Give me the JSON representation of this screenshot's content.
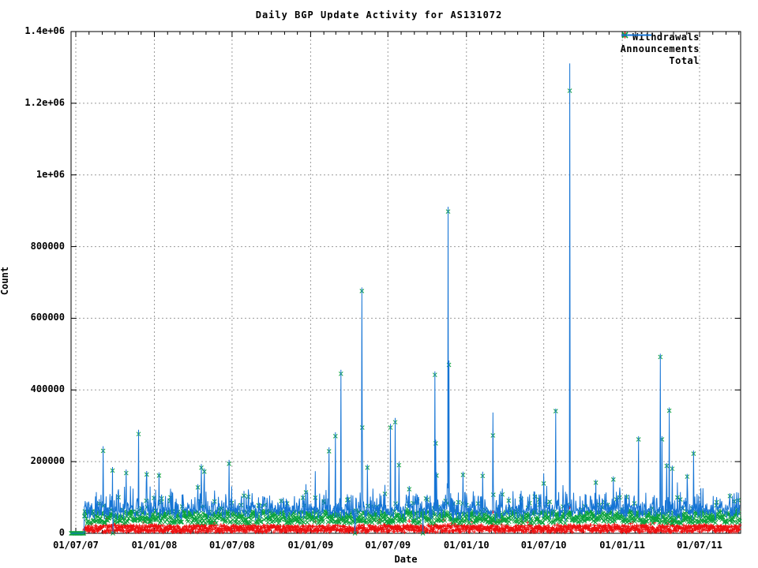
{
  "title": "Daily BGP Update Activity for AS131072",
  "axes": {
    "x_label": "Date",
    "y_label": "Count",
    "x_ticks": [
      {
        "label": "01/07/07",
        "date": "2007-07-01"
      },
      {
        "label": "01/01/08",
        "date": "2008-01-01"
      },
      {
        "label": "01/07/08",
        "date": "2008-07-01"
      },
      {
        "label": "01/01/09",
        "date": "2009-01-01"
      },
      {
        "label": "01/07/09",
        "date": "2009-07-01"
      },
      {
        "label": "01/01/10",
        "date": "2010-01-01"
      },
      {
        "label": "01/07/10",
        "date": "2010-07-01"
      },
      {
        "label": "01/01/11",
        "date": "2011-01-01"
      },
      {
        "label": "01/07/11",
        "date": "2011-07-01"
      }
    ],
    "y_ticks": [
      {
        "label": "0",
        "value": 0
      },
      {
        "label": "200000",
        "value": 200000
      },
      {
        "label": "400000",
        "value": 400000
      },
      {
        "label": "600000",
        "value": 600000
      },
      {
        "label": "800000",
        "value": 800000
      },
      {
        "label": "1e+06",
        "value": 1000000
      },
      {
        "label": "1.2e+06",
        "value": 1200000
      },
      {
        "label": "1.4e+06",
        "value": 1400000
      }
    ],
    "minor_x_ticks": "monthly",
    "grid": "dashed-at-major-ticks"
  },
  "legend": {
    "position": "top-right-inside",
    "items": [
      {
        "label": "Withdrawals",
        "marker": "plus",
        "color": "#ee1111"
      },
      {
        "label": "Announcements",
        "marker": "cross",
        "color": "#0ba23e"
      },
      {
        "label": "Total",
        "marker": "line",
        "color": "#1574d5"
      }
    ]
  },
  "colors": {
    "background": "#ffffff",
    "border": "#000000",
    "grid": "#9b9b9b",
    "withdrawals": "#ee1111",
    "announcements": "#0ba23e",
    "total": "#1574d5"
  },
  "chart_data": {
    "type": "line",
    "title": "Daily BGP Update Activity for AS131072",
    "xlabel": "Date",
    "ylabel": "Count",
    "resolution": "daily",
    "x_range": [
      "2007-06-20",
      "2011-10-03"
    ],
    "ylim": [
      0,
      1400000
    ],
    "random_seed": 20110815,
    "series": [
      {
        "name": "Withdrawals",
        "style": "points-plus",
        "color": "#ee1111",
        "baseline": {
          "min": 3000,
          "max": 23000,
          "rare_max": 45000
        }
      },
      {
        "name": "Announcements",
        "style": "points-cross",
        "color": "#0ba23e",
        "baseline": {
          "min": 28000,
          "max": 62000,
          "tail_max": 110000,
          "rare_max": 160000
        }
      },
      {
        "name": "Total",
        "style": "line",
        "color": "#1574d5",
        "baseline": "withdrawals + announcements + noise"
      }
    ],
    "zero_period": {
      "start": "2007-06-20",
      "end": "2007-07-20"
    },
    "zero_days": [
      "2007-09-26",
      "2009-04-15",
      "2009-09-21"
    ],
    "spikes": [
      {
        "date": "2007-09-03",
        "announcements": 230000,
        "total": 243000
      },
      {
        "date": "2007-09-25",
        "announcements": 175000,
        "total": 185000
      },
      {
        "date": "2007-10-27",
        "announcements": 168000,
        "total": 178000
      },
      {
        "date": "2007-11-25",
        "announcements": 277000,
        "total": 289000
      },
      {
        "date": "2007-12-14",
        "announcements": 164000,
        "total": 174000
      },
      {
        "date": "2008-01-12",
        "announcements": 161000,
        "total": 170000
      },
      {
        "date": "2008-02-07",
        "announcements": 90000,
        "total": 99000
      },
      {
        "date": "2008-04-12",
        "announcements": 128000,
        "total": 137000
      },
      {
        "date": "2008-04-20",
        "announcements": 183000,
        "total": 193000
      },
      {
        "date": "2008-04-27",
        "announcements": 172000,
        "total": 181000
      },
      {
        "date": "2008-06-24",
        "announcements": 194000,
        "total": 205000
      },
      {
        "date": "2008-12-14",
        "announcements": 99000,
        "total": 108000
      },
      {
        "date": "2009-02-13",
        "announcements": 229000,
        "total": 240000
      },
      {
        "date": "2009-02-28",
        "announcements": 271000,
        "total": 282000
      },
      {
        "date": "2009-03-13",
        "announcements": 445000,
        "total": 456000
      },
      {
        "date": "2009-05-01",
        "announcements": 676000,
        "total": 686000
      },
      {
        "date": "2009-05-02",
        "announcements": 295000,
        "total": 305000
      },
      {
        "date": "2009-05-14",
        "announcements": 183000,
        "total": 192000
      },
      {
        "date": "2009-07-07",
        "announcements": 295000,
        "total": 305000
      },
      {
        "date": "2009-07-18",
        "announcements": 310000,
        "total": 322000
      },
      {
        "date": "2009-07-27",
        "announcements": 190000,
        "total": 199000
      },
      {
        "date": "2009-08-20",
        "announcements": 123000,
        "total": 132000
      },
      {
        "date": "2009-10-19",
        "announcements": 442000,
        "total": 452000
      },
      {
        "date": "2009-10-21",
        "announcements": 251000,
        "total": 261000
      },
      {
        "date": "2009-10-23",
        "announcements": 161000,
        "total": 170000
      },
      {
        "date": "2009-11-19",
        "announcements": 898000,
        "total": 911000
      },
      {
        "date": "2009-11-21",
        "announcements": 470000,
        "total": 482000
      },
      {
        "date": "2009-12-24",
        "announcements": 163000,
        "total": 172000
      },
      {
        "date": "2010-02-08",
        "announcements": 160000,
        "total": 172000
      },
      {
        "date": "2010-03-04",
        "announcements": 273000,
        "total": 337000,
        "withdrawals": 59000
      },
      {
        "date": "2010-07-01",
        "announcements": 139000,
        "total": 167000
      },
      {
        "date": "2010-07-29",
        "announcements": 341000,
        "total": 348000
      },
      {
        "date": "2010-08-31",
        "announcements": 1235000,
        "total": 1311000,
        "withdrawals": 72000
      },
      {
        "date": "2010-10-31",
        "announcements": 141000,
        "total": 150000
      },
      {
        "date": "2010-12-11",
        "announcements": 150000,
        "total": 159000
      },
      {
        "date": "2011-02-08",
        "announcements": 262000,
        "total": 271000
      },
      {
        "date": "2011-03-31",
        "announcements": 492000,
        "total": 501000
      },
      {
        "date": "2011-04-04",
        "announcements": 262000,
        "total": 271000
      },
      {
        "date": "2011-04-15",
        "announcements": 188000,
        "total": 196000
      },
      {
        "date": "2011-04-21",
        "announcements": 342000,
        "total": 351000
      },
      {
        "date": "2011-04-28",
        "announcements": 180000,
        "total": 189000
      },
      {
        "date": "2011-06-02",
        "announcements": 158000,
        "total": 166000
      },
      {
        "date": "2011-06-17",
        "announcements": 222000,
        "total": 231000
      },
      {
        "date": "2011-09-10",
        "announcements": 104000,
        "total": 112000
      }
    ]
  }
}
